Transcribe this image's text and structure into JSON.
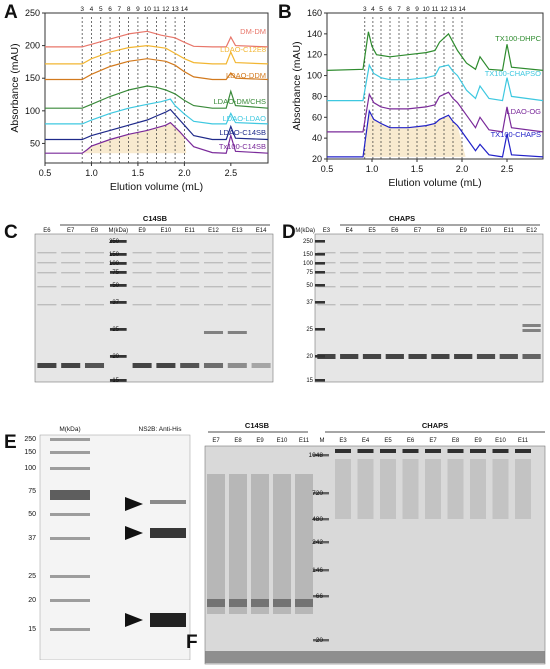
{
  "panels": {
    "A": "A",
    "B": "B",
    "C": "C",
    "D": "D",
    "E": "E",
    "F": "F"
  },
  "chart_data": [
    {
      "panel": "A",
      "type": "line",
      "xlabel": "Elution volume (mL)",
      "ylabel": "Absorbance (mAU)",
      "xlim": [
        0.5,
        2.9
      ],
      "ylim": [
        20,
        250
      ],
      "xticks": [
        "0.5",
        "1.0",
        "1.5",
        "2.0",
        "2.5"
      ],
      "yticks": [
        "50",
        "100",
        "150",
        "200",
        "250"
      ],
      "fractions": [
        "3",
        "4",
        "5",
        "6",
        "7",
        "8",
        "9",
        "10",
        "11",
        "12",
        "13",
        "14"
      ],
      "fraction_x": [
        0.9,
        1.0,
        1.1,
        1.2,
        1.3,
        1.4,
        1.5,
        1.6,
        1.7,
        1.8,
        1.9,
        2.0
      ],
      "fraction_range": [
        0.88,
        2.02
      ],
      "series": [
        {
          "name": "DM-DM",
          "color": "#e8766a",
          "baseline": 198,
          "x": [
            0.5,
            0.9,
            0.95,
            1.0,
            1.2,
            1.4,
            1.6,
            1.75,
            1.9,
            2.0,
            2.1,
            2.3,
            2.45,
            2.5,
            2.55,
            2.9
          ],
          "y": [
            198,
            198,
            200,
            202,
            210,
            218,
            222,
            216,
            212,
            205,
            199,
            198,
            198,
            213,
            200,
            198
          ]
        },
        {
          "name": "LDAO-C12E8",
          "color": "#f2b632",
          "baseline": 172,
          "x": [
            0.5,
            0.9,
            1.0,
            1.2,
            1.4,
            1.6,
            1.8,
            1.9,
            2.0,
            2.1,
            2.3,
            2.45,
            2.5,
            2.55,
            2.9
          ],
          "y": [
            172,
            172,
            180,
            190,
            197,
            200,
            196,
            188,
            180,
            174,
            172,
            172,
            190,
            174,
            172
          ]
        },
        {
          "name": "LDAO-DDM",
          "color": "#d27a1e",
          "baseline": 148,
          "x": [
            0.5,
            0.9,
            1.0,
            1.2,
            1.4,
            1.6,
            1.8,
            1.9,
            2.0,
            2.1,
            2.3,
            2.45,
            2.5,
            2.55,
            2.9
          ],
          "y": [
            148,
            148,
            156,
            168,
            176,
            180,
            176,
            170,
            160,
            152,
            148,
            148,
            158,
            150,
            148
          ]
        },
        {
          "name": "LDAO-DM/CHS",
          "color": "#3a8a3a",
          "baseline": 104,
          "x": [
            0.5,
            0.9,
            1.0,
            1.2,
            1.4,
            1.6,
            1.7,
            1.8,
            1.9,
            2.0,
            2.1,
            2.3,
            2.45,
            2.5,
            2.55,
            2.9
          ],
          "y": [
            104,
            104,
            110,
            122,
            132,
            138,
            136,
            132,
            126,
            116,
            108,
            104,
            104,
            130,
            108,
            104
          ]
        },
        {
          "name": "LDAO-LDAO",
          "color": "#3ec8e0",
          "baseline": 80,
          "x": [
            0.5,
            0.9,
            1.0,
            1.2,
            1.4,
            1.6,
            1.75,
            1.85,
            1.9,
            2.0,
            2.1,
            2.3,
            2.45,
            2.5,
            2.55,
            2.9
          ],
          "y": [
            80,
            80,
            86,
            96,
            104,
            110,
            114,
            118,
            108,
            95,
            84,
            80,
            80,
            96,
            82,
            80
          ]
        },
        {
          "name": "LDAO-C14SB",
          "color": "#1f2a8a",
          "baseline": 56,
          "x": [
            0.5,
            0.9,
            1.0,
            1.2,
            1.4,
            1.6,
            1.7,
            1.8,
            1.85,
            1.95,
            2.0,
            2.1,
            2.3,
            2.45,
            2.5,
            2.55,
            2.9
          ],
          "y": [
            56,
            56,
            62,
            70,
            78,
            86,
            92,
            98,
            102,
            86,
            78,
            62,
            56,
            56,
            76,
            58,
            56
          ]
        },
        {
          "name": "Tx100-C14SB",
          "color": "#7a2a9a",
          "baseline": 35,
          "x": [
            0.5,
            0.9,
            0.95,
            1.0,
            1.2,
            1.4,
            1.6,
            1.7,
            1.8,
            1.85,
            1.95,
            2.0,
            2.1,
            2.3,
            2.45,
            2.5,
            2.55,
            2.9
          ],
          "y": [
            35,
            35,
            40,
            46,
            56,
            64,
            70,
            74,
            78,
            82,
            68,
            60,
            45,
            36,
            35,
            62,
            38,
            35
          ]
        }
      ]
    },
    {
      "panel": "B",
      "type": "line",
      "xlabel": "Elution volume (mL)",
      "ylabel": "Absorbance (mAU)",
      "xlim": [
        0.5,
        2.9
      ],
      "ylim": [
        20,
        160
      ],
      "xticks": [
        "0.5",
        "1.0",
        "1.5",
        "2.0",
        "2.5"
      ],
      "yticks": [
        "20",
        "40",
        "60",
        "80",
        "100",
        "120",
        "140",
        "160"
      ],
      "fractions": [
        "3",
        "4",
        "5",
        "6",
        "7",
        "8",
        "9",
        "10",
        "11",
        "12",
        "13",
        "14"
      ],
      "fraction_x": [
        0.92,
        1.01,
        1.1,
        1.2,
        1.3,
        1.4,
        1.5,
        1.6,
        1.7,
        1.8,
        1.9,
        2.0
      ],
      "fraction_range": [
        0.88,
        2.04
      ],
      "series": [
        {
          "name": "TX100-DHPC",
          "color": "#2e8b2e",
          "x": [
            0.5,
            0.9,
            0.96,
            1.0,
            1.05,
            1.2,
            1.4,
            1.6,
            1.7,
            1.75,
            1.85,
            1.9,
            1.95,
            2.05,
            2.15,
            2.2,
            2.3,
            2.45,
            2.5,
            2.55,
            2.9
          ],
          "y": [
            105,
            106,
            142,
            128,
            120,
            118,
            120,
            122,
            124,
            132,
            140,
            132,
            124,
            112,
            106,
            118,
            106,
            105,
            130,
            108,
            105
          ]
        },
        {
          "name": "TX100-CHAPSO",
          "color": "#3ec8e0",
          "x": [
            0.5,
            0.9,
            0.97,
            1.02,
            1.1,
            1.2,
            1.4,
            1.6,
            1.7,
            1.75,
            1.85,
            1.9,
            1.95,
            2.05,
            2.15,
            2.2,
            2.3,
            2.45,
            2.5,
            2.55,
            2.9
          ],
          "y": [
            76,
            76,
            110,
            102,
            98,
            96,
            96,
            98,
            100,
            108,
            110,
            104,
            100,
            86,
            78,
            90,
            78,
            76,
            98,
            80,
            76
          ]
        },
        {
          "name": "LDAO-OG",
          "color": "#7a2a9a",
          "x": [
            0.5,
            0.9,
            0.97,
            1.02,
            1.1,
            1.2,
            1.4,
            1.6,
            1.7,
            1.75,
            1.85,
            1.9,
            1.95,
            2.05,
            2.15,
            2.2,
            2.3,
            2.45,
            2.5,
            2.55,
            2.9
          ],
          "y": [
            46,
            46,
            82,
            74,
            70,
            68,
            68,
            70,
            72,
            80,
            84,
            78,
            74,
            62,
            50,
            60,
            48,
            46,
            70,
            50,
            46
          ]
        },
        {
          "name": "TX100-CHAPS",
          "color": "#2222c8",
          "x": [
            0.5,
            0.9,
            0.97,
            1.02,
            1.1,
            1.2,
            1.4,
            1.6,
            1.7,
            1.75,
            1.85,
            1.9,
            1.95,
            2.05,
            2.15,
            2.2,
            2.3,
            2.45,
            2.5,
            2.55,
            2.9
          ],
          "y": [
            22,
            22,
            66,
            58,
            54,
            50,
            50,
            52,
            54,
            58,
            62,
            56,
            52,
            40,
            28,
            34,
            24,
            22,
            44,
            24,
            22
          ]
        }
      ]
    }
  ],
  "gels": {
    "C": {
      "title": "C14SB",
      "marker_label": "M(kDa)",
      "lanes": [
        "E6",
        "E7",
        "E8",
        "M(kDa)",
        "E9",
        "E10",
        "E11",
        "E12",
        "E13",
        "E14"
      ],
      "markers": [
        "250",
        "150",
        "100",
        "75",
        "50",
        "37",
        "25",
        "20",
        "15"
      ]
    },
    "D": {
      "title": "CHAPS",
      "marker_label": "M(kDa)",
      "lanes": [
        "E3",
        "E4",
        "E5",
        "E6",
        "E7",
        "E8",
        "E9",
        "E10",
        "E11",
        "E12"
      ],
      "markers": [
        "250",
        "150",
        "100",
        "75",
        "50",
        "37",
        "25",
        "20",
        "15"
      ]
    },
    "E": {
      "marker_label": "M(kDa)",
      "blot_label": "NS2B: Anti-His",
      "markers": [
        "250",
        "150",
        "100",
        "75",
        "50",
        "37",
        "25",
        "20",
        "15"
      ]
    },
    "F": {
      "title_left": "C14SB",
      "title_right": "CHAPS",
      "lanes_left": [
        "E7",
        "E8",
        "E9",
        "E10",
        "E11"
      ],
      "marker_lane": "M",
      "lanes_right": [
        "E3",
        "E4",
        "E5",
        "E6",
        "E7",
        "E8",
        "E9",
        "E10",
        "E11"
      ],
      "markers": [
        "1048",
        "720",
        "480",
        "242",
        "146",
        "66",
        "20"
      ]
    }
  }
}
